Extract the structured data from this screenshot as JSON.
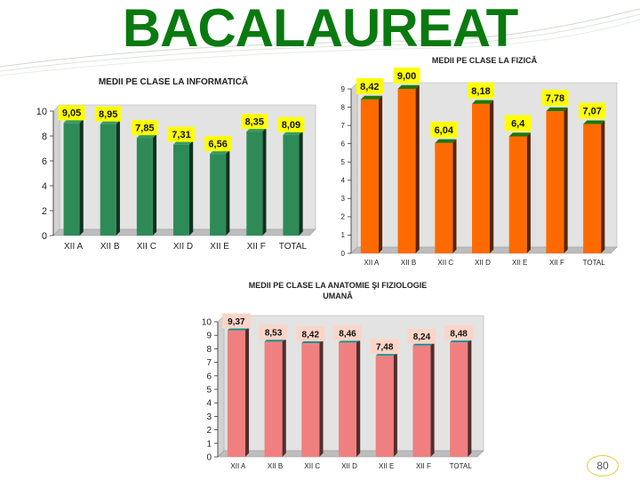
{
  "slide": {
    "title": "BACALAUREAT",
    "page_number": "80",
    "accent_color": "#0a7a10"
  },
  "chart_data": [
    {
      "type": "bar",
      "title": "MEDII PE CLASE LA INFORMATICĂ",
      "categories": [
        "XII A",
        "XII B",
        "XII C",
        "XII D",
        "XII E",
        "XII F",
        "TOTAL"
      ],
      "values": [
        9.05,
        8.95,
        7.85,
        7.31,
        6.56,
        8.35,
        8.09
      ],
      "value_labels": [
        "9,05",
        "8,95",
        "7,85",
        "7,31",
        "6,56",
        "8,35",
        "8,09"
      ],
      "ylim": [
        0,
        10
      ],
      "yticks": [
        "0",
        "2",
        "4",
        "6",
        "8",
        "10"
      ],
      "bar_color": "#2e8b57",
      "label_bg": "#ffff00",
      "grid": false
    },
    {
      "type": "bar",
      "title": "MEDII PE CLASE LA FIZICĂ",
      "categories": [
        "XII A",
        "XII B",
        "XII C",
        "XII D",
        "XII E",
        "XII F",
        "TOTAL"
      ],
      "values": [
        8.42,
        9.0,
        6.04,
        8.18,
        6.4,
        7.78,
        7.07
      ],
      "value_labels": [
        "8,42",
        "9,00",
        "6,04",
        "8,18",
        "6,4",
        "7,78",
        "7,07"
      ],
      "ylim": [
        0,
        9
      ],
      "yticks": [
        "0",
        "1",
        "2",
        "3",
        "4",
        "5",
        "6",
        "7",
        "8",
        "9"
      ],
      "bar_color": "#ff6a00",
      "label_bg": "#ffff00",
      "grid": false
    },
    {
      "type": "bar",
      "title": "MEDII PE CLASE LA ANATOMIE ŞI FIZIOLOGIE UMANĂ",
      "categories": [
        "XII A",
        "XII B",
        "XII C",
        "XII D",
        "XII E",
        "XII F",
        "TOTAL"
      ],
      "values": [
        9.37,
        8.53,
        8.42,
        8.46,
        7.48,
        8.24,
        8.48
      ],
      "value_labels": [
        "9,37",
        "8,53",
        "8,42",
        "8,46",
        "7,48",
        "8,24",
        "8,48"
      ],
      "ylim": [
        0,
        10
      ],
      "yticks": [
        "0",
        "1",
        "2",
        "3",
        "4",
        "5",
        "6",
        "7",
        "8",
        "9",
        "10"
      ],
      "bar_color": "#f08080",
      "label_bg": "#fbd5c8",
      "grid": false
    }
  ]
}
